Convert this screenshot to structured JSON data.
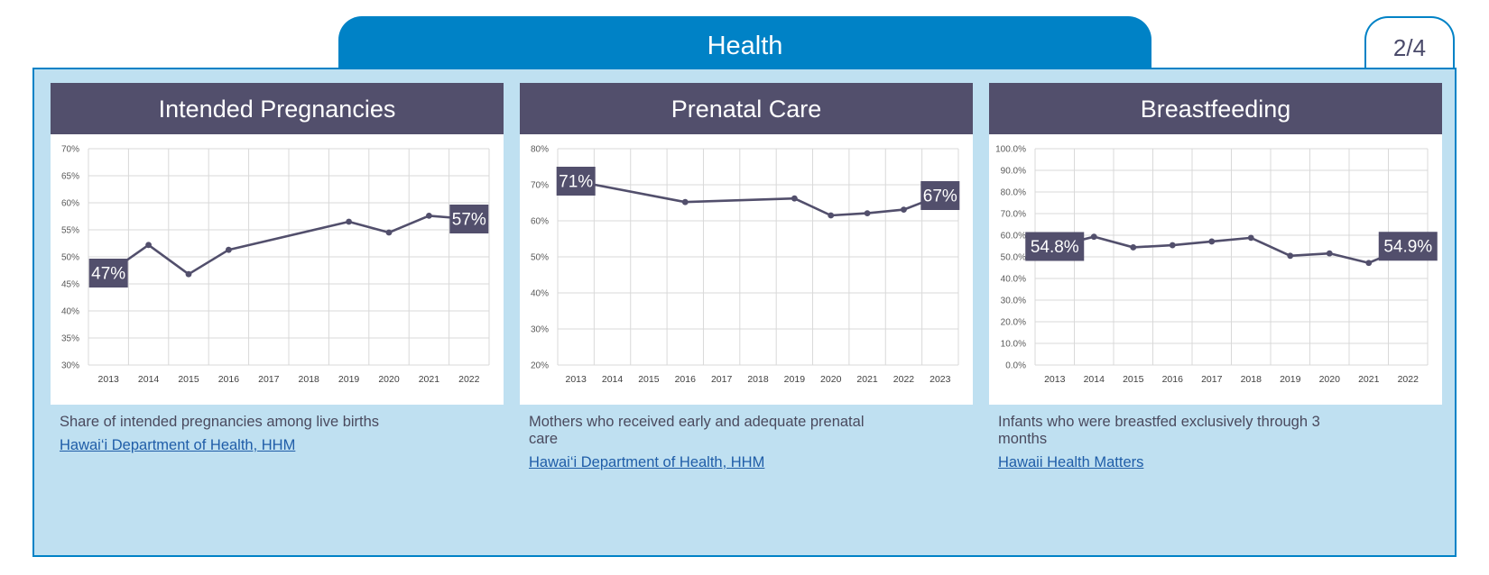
{
  "header": {
    "title": "Health",
    "page_indicator": "2/4"
  },
  "colors": {
    "tab_blue": "#0082c6",
    "panel_bg": "#bfe0f1",
    "card_header": "#524f6c",
    "series": "#524f6c",
    "link": "#1f5da8"
  },
  "cards": [
    {
      "title": "Intended Pregnancies",
      "description": "Share of intended pregnancies among live births",
      "source": "Hawai‘i Department of Health, HHM"
    },
    {
      "title": "Prenatal Care",
      "description": "Mothers who received early and adequate prenatal care",
      "source": "Hawai‘i Department of Health, HHM"
    },
    {
      "title": "Breastfeeding",
      "description": "Infants who were breastfed exclusively through 3 months",
      "source": "Hawaii Health Matters"
    }
  ],
  "chart_data": [
    {
      "type": "line",
      "categories": [
        "2013",
        "2014",
        "2015",
        "2016",
        "2017",
        "2018",
        "2019",
        "2020",
        "2021",
        "2022"
      ],
      "series": [
        {
          "values": [
            47,
            52.2,
            46.8,
            51.3,
            null,
            null,
            56.5,
            54.5,
            57.6,
            57
          ]
        }
      ],
      "ylim": [
        30,
        70
      ],
      "yticks": [
        "30%",
        "35%",
        "40%",
        "45%",
        "50%",
        "55%",
        "60%",
        "65%",
        "70%"
      ],
      "data_labels": [
        {
          "index": 0,
          "text": "47%"
        },
        {
          "index": 9,
          "text": "57%"
        }
      ],
      "grid": true
    },
    {
      "type": "line",
      "categories": [
        "2013",
        "2014",
        "2015",
        "2016",
        "2017",
        "2018",
        "2019",
        "2020",
        "2021",
        "2022",
        "2023"
      ],
      "series": [
        {
          "values": [
            71,
            null,
            null,
            65.2,
            null,
            null,
            66.2,
            61.5,
            62.1,
            63.1,
            67
          ]
        }
      ],
      "ylim": [
        20,
        80
      ],
      "yticks": [
        "20%",
        "30%",
        "40%",
        "50%",
        "60%",
        "70%",
        "80%"
      ],
      "data_labels": [
        {
          "index": 0,
          "text": "71%"
        },
        {
          "index": 10,
          "text": "67%"
        }
      ],
      "grid": true
    },
    {
      "type": "line",
      "categories": [
        "2013",
        "2014",
        "2015",
        "2016",
        "2017",
        "2018",
        "2019",
        "2020",
        "2021",
        "2022"
      ],
      "series": [
        {
          "values": [
            54.8,
            59.3,
            54.4,
            55.4,
            57.1,
            58.8,
            50.5,
            51.6,
            47.2,
            54.9
          ]
        }
      ],
      "ylim": [
        0,
        100
      ],
      "yticks": [
        "0.0%",
        "10.0%",
        "20.0%",
        "30.0%",
        "40.0%",
        "50.0%",
        "60.0%",
        "70.0%",
        "80.0%",
        "90.0%",
        "100.0%"
      ],
      "data_labels": [
        {
          "index": 0,
          "text": "54.8%"
        },
        {
          "index": 9,
          "text": "54.9%"
        }
      ],
      "grid": true
    }
  ]
}
